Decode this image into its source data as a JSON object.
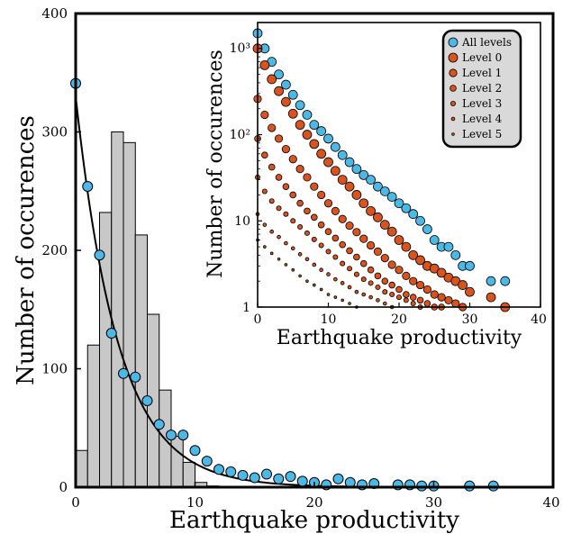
{
  "chart_data": [
    {
      "type": "bar",
      "xlabel": "Earthquake productivity",
      "ylabel": "Number of occurences",
      "xlim": [
        0,
        40
      ],
      "ylim": [
        0,
        400
      ],
      "xticks": [
        "0",
        "10",
        "20",
        "30",
        "40"
      ],
      "yticks": [
        "0",
        "100",
        "200",
        "300",
        "400"
      ],
      "histogram": {
        "bin_width": 1,
        "bin_starts": [
          0,
          1,
          2,
          3,
          4,
          5,
          6,
          7,
          8,
          9,
          10,
          11
        ],
        "counts": [
          31,
          120,
          232,
          300,
          291,
          213,
          146,
          82,
          43,
          21,
          4,
          1
        ],
        "color": "#c8c8c8"
      },
      "points": {
        "color": "#4bb8e6",
        "x": [
          0,
          1,
          2,
          3,
          4,
          5,
          6,
          7,
          8,
          9,
          10,
          11,
          12,
          13,
          14,
          15,
          16,
          17,
          18,
          19,
          20,
          21,
          22,
          23,
          24,
          25,
          27,
          28,
          29,
          30,
          33,
          35
        ],
        "y": [
          341,
          254,
          196,
          130,
          96,
          93,
          73,
          53,
          44,
          44,
          31,
          22,
          15,
          13,
          10,
          8,
          11,
          7,
          9,
          5,
          4,
          2,
          7,
          4,
          2,
          3,
          2,
          2,
          1,
          1,
          1,
          1
        ]
      },
      "fit_curve": {
        "type": "exponential",
        "a": 330,
        "b": 0.28,
        "color": "#000000"
      }
    },
    {
      "type": "scatter",
      "xlabel": "Earthquake productivity",
      "ylabel": "Number of occurences",
      "xlim": [
        0,
        40
      ],
      "ylim": [
        1,
        2000
      ],
      "yscale": "log",
      "xticks": [
        "0",
        "10",
        "20",
        "30",
        "40"
      ],
      "yticks": [
        "1",
        "10",
        "10²",
        "10³"
      ],
      "legend": {
        "placement": "top-right",
        "entries": [
          "All levels",
          "Level 0",
          "Level 1",
          "Level 2",
          "Level 3",
          "Level 4",
          "Level 5"
        ]
      },
      "series": [
        {
          "name": "All levels",
          "color": "#4bb8e6",
          "x": [
            0,
            1,
            2,
            3,
            4,
            5,
            6,
            7,
            8,
            9,
            10,
            11,
            12,
            13,
            14,
            15,
            16,
            17,
            18,
            19,
            20,
            21,
            22,
            23,
            24,
            25,
            26,
            27,
            28,
            29,
            30,
            33,
            35
          ],
          "y": [
            1500,
            1000,
            700,
            500,
            380,
            290,
            220,
            170,
            130,
            110,
            90,
            72,
            58,
            48,
            40,
            34,
            30,
            25,
            22,
            19,
            16,
            14,
            12,
            10,
            8,
            6,
            5,
            5,
            4,
            3,
            3,
            2,
            2
          ]
        },
        {
          "name": "Level 0",
          "color": "#d9531e",
          "x": [
            0,
            1,
            2,
            3,
            4,
            5,
            6,
            7,
            8,
            9,
            10,
            11,
            12,
            13,
            14,
            15,
            16,
            17,
            18,
            19,
            20,
            21,
            22,
            23,
            24,
            25,
            26,
            27,
            28,
            29,
            30,
            33,
            35
          ],
          "y": [
            1000,
            640,
            440,
            320,
            240,
            175,
            130,
            100,
            78,
            60,
            48,
            38,
            30,
            25,
            20,
            16,
            13,
            11,
            9,
            7.5,
            6,
            5,
            4,
            3.5,
            3,
            2.8,
            2.5,
            2.2,
            2,
            1.8,
            1.5,
            1.3,
            1
          ]
        },
        {
          "name": "Level 1",
          "color": "#d9531e",
          "x": [
            0,
            1,
            2,
            3,
            4,
            5,
            6,
            7,
            8,
            9,
            10,
            11,
            12,
            13,
            14,
            15,
            16,
            17,
            18,
            19,
            20,
            21,
            22,
            23,
            24,
            25,
            26,
            27,
            28,
            29
          ],
          "y": [
            260,
            170,
            120,
            90,
            68,
            52,
            40,
            32,
            25,
            20,
            16,
            13,
            10.5,
            8.8,
            7.4,
            6.2,
            5.2,
            4.4,
            3.7,
            3.1,
            2.7,
            2.3,
            2,
            1.8,
            1.6,
            1.4,
            1.3,
            1.2,
            1.1,
            1
          ]
        },
        {
          "name": "Level 2",
          "color": "#d9531e",
          "x": [
            0,
            1,
            2,
            3,
            4,
            5,
            6,
            7,
            8,
            9,
            10,
            11,
            12,
            13,
            14,
            15,
            16,
            17,
            18,
            19,
            20,
            21,
            22,
            23,
            24,
            25,
            26
          ],
          "y": [
            90,
            58,
            42,
            32,
            25,
            20,
            16,
            13,
            11,
            9,
            7.5,
            6.3,
            5.3,
            4.5,
            3.8,
            3.2,
            2.7,
            2.3,
            2,
            1.8,
            1.6,
            1.4,
            1.3,
            1.2,
            1.1,
            1,
            1
          ]
        },
        {
          "name": "Level 3",
          "color": "#d9531e",
          "x": [
            0,
            1,
            2,
            3,
            4,
            5,
            6,
            7,
            8,
            9,
            10,
            11,
            12,
            13,
            14,
            15,
            16,
            17,
            18,
            19,
            20,
            21,
            22,
            23
          ],
          "y": [
            32,
            22,
            17,
            14,
            12,
            10,
            8.5,
            7.2,
            6.1,
            5.2,
            4.4,
            3.8,
            3.2,
            2.8,
            2.4,
            2.1,
            1.9,
            1.7,
            1.5,
            1.4,
            1.3,
            1.2,
            1.1,
            1
          ]
        },
        {
          "name": "Level 4",
          "color": "#d9531e",
          "x": [
            0,
            1,
            2,
            3,
            4,
            5,
            6,
            7,
            8,
            9,
            10,
            11,
            12,
            13,
            14,
            15,
            16,
            17,
            18,
            19
          ],
          "y": [
            12,
            9,
            7.5,
            6.5,
            5.5,
            4.8,
            4.1,
            3.6,
            3.1,
            2.7,
            2.4,
            2.1,
            1.9,
            1.7,
            1.5,
            1.4,
            1.3,
            1.2,
            1.1,
            1
          ]
        },
        {
          "name": "Level 5",
          "color": "#d9531e",
          "x": [
            0,
            1,
            2,
            3,
            4,
            5,
            6,
            7,
            8,
            9,
            10,
            11,
            12,
            13,
            14
          ],
          "y": [
            6,
            5,
            4.2,
            3.6,
            3.1,
            2.7,
            2.3,
            2,
            1.8,
            1.6,
            1.4,
            1.3,
            1.2,
            1.1,
            1
          ]
        }
      ]
    }
  ]
}
